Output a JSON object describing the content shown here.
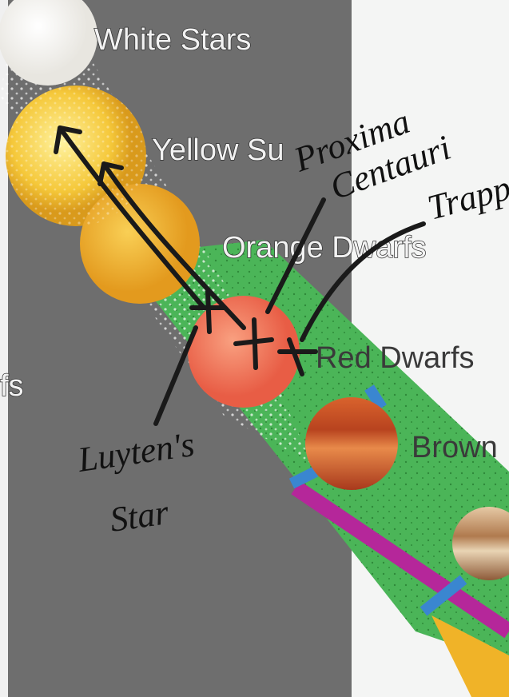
{
  "labels": {
    "white_stars": "White Stars",
    "yellow": "Yellow Su",
    "orange_dwarfs": "Orange Dwarfs",
    "red_dwarfs": "Red Dwarfs",
    "brown": "Brown",
    "left_fragment": "fs"
  },
  "annotations": {
    "proxima": [
      "Proxima",
      "Centauri"
    ],
    "trappist": [
      "Trapp"
    ],
    "luyten": [
      "Luyten's",
      "Star"
    ]
  }
}
